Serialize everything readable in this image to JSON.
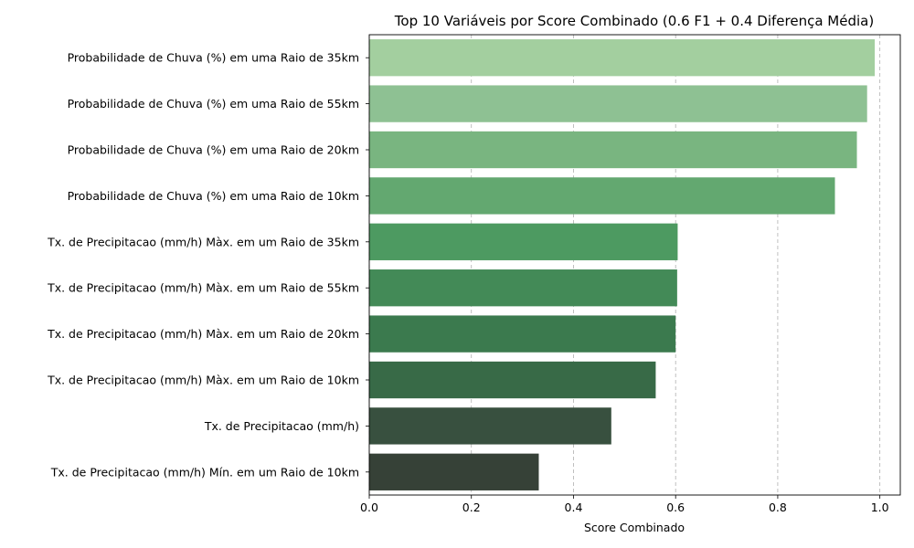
{
  "chart_data": {
    "type": "bar",
    "orientation": "horizontal",
    "title": "Top 10 Variáveis por Score Combinado (0.6 F1 + 0.4 Diferença Média)",
    "xlabel": "Score Combinado",
    "ylabel": "",
    "xlim": [
      0,
      1.04
    ],
    "xticks": [
      0.0,
      0.2,
      0.4,
      0.6,
      0.8,
      1.0
    ],
    "xtick_labels": [
      "0.0",
      "0.2",
      "0.4",
      "0.6",
      "0.8",
      "1.0"
    ],
    "grid": "x-dashed",
    "categories": [
      "Probabilidade de Chuva (%) em uma Raio de 35km",
      "Probabilidade de Chuva (%) em uma Raio de 55km",
      "Probabilidade de Chuva (%) em uma Raio de 20km",
      "Probabilidade de Chuva (%) em uma Raio de 10km",
      "Tx. de Precipitacao (mm/h) Màx. em um Raio de 35km",
      "Tx. de Precipitacao (mm/h) Màx. em um Raio de 55km",
      "Tx. de Precipitacao (mm/h) Màx. em um Raio de 20km",
      "Tx. de Precipitacao (mm/h) Màx. em um Raio de 10km",
      "Tx. de Precipitacao (mm/h)",
      "Tx. de Precipitacao (mm/h) Mín. em um Raio de 10km"
    ],
    "values": [
      0.99,
      0.975,
      0.955,
      0.912,
      0.604,
      0.603,
      0.6,
      0.561,
      0.474,
      0.332
    ],
    "colors": [
      "#a3cf9f",
      "#8ec193",
      "#79b580",
      "#63a870",
      "#4d9a61",
      "#438a57",
      "#3b7a4e",
      "#386a47",
      "#38503f",
      "#364137"
    ]
  }
}
